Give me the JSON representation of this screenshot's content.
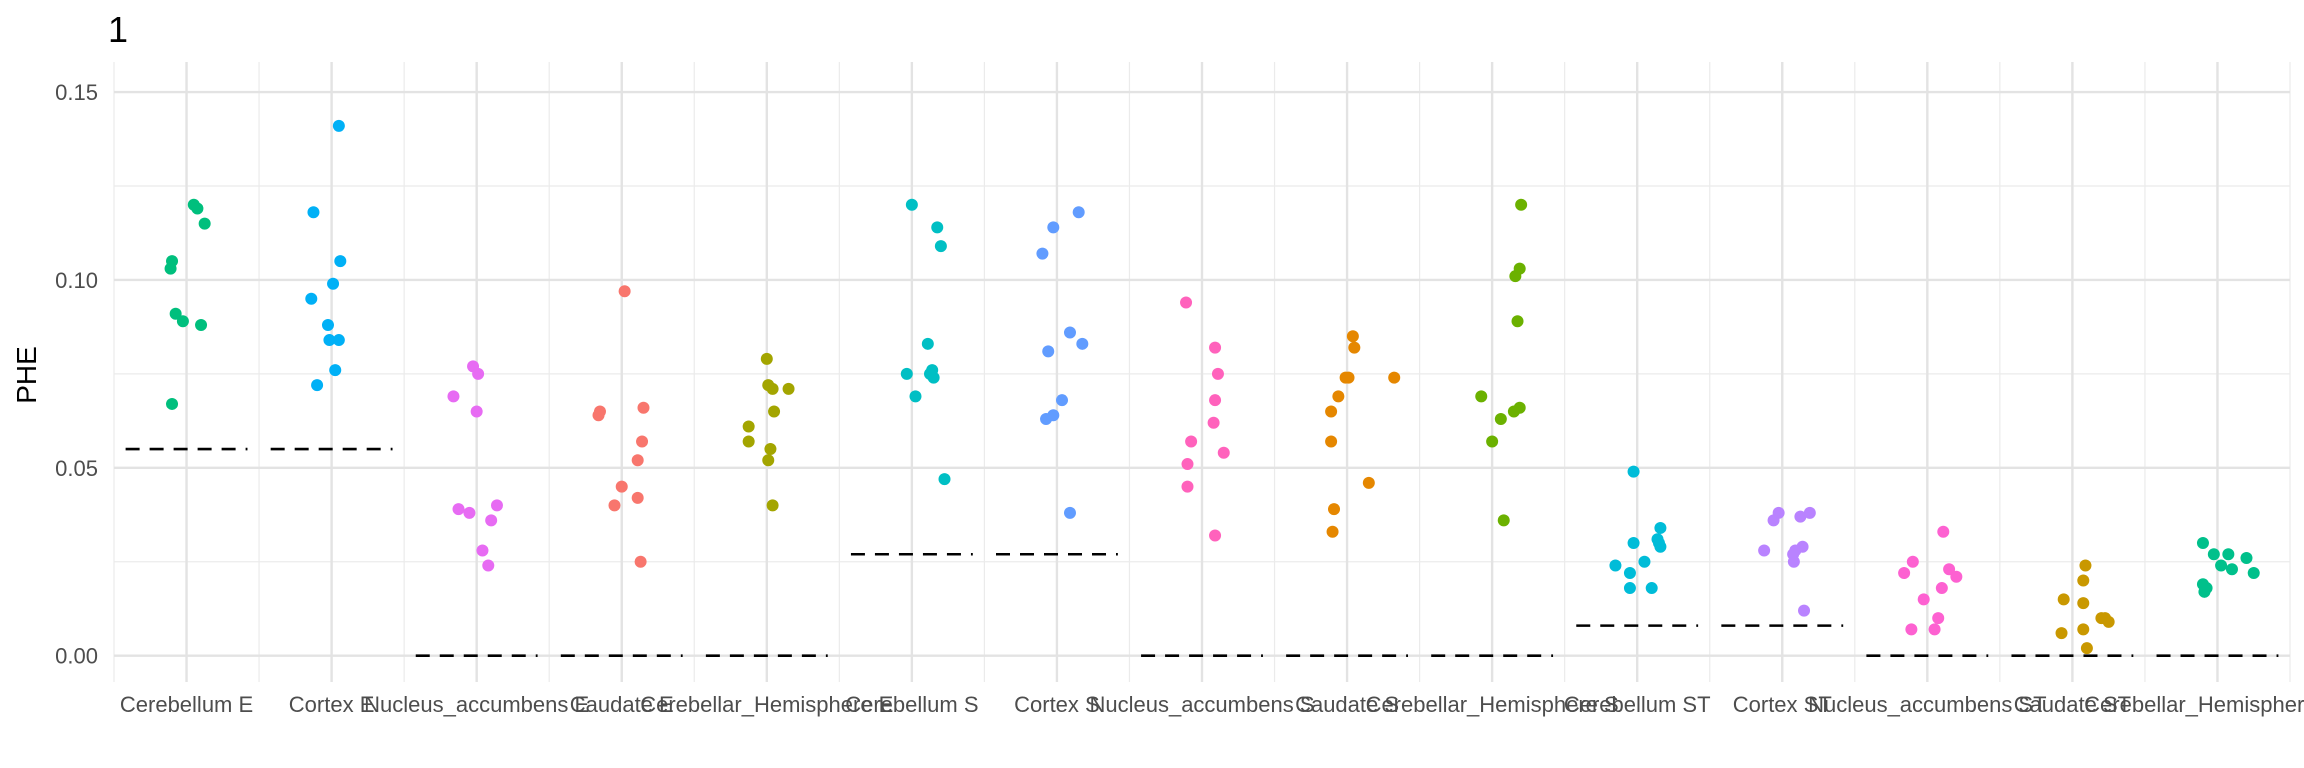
{
  "chart_data": {
    "type": "scatter",
    "title": "1",
    "xlabel": "",
    "ylabel": "PHE",
    "ylim": [
      -0.007,
      0.158
    ],
    "yticks": [
      "0.00",
      "0.05",
      "0.10",
      "0.15"
    ],
    "ytick_values": [
      0.0,
      0.05,
      0.1,
      0.15
    ],
    "grid": true,
    "legend": "none",
    "categories": [
      "Cerebellum E",
      "Cortex E",
      "Nucleus_accumbens E",
      "Caudate E",
      "Cerebellar_Hemisphere E",
      "Cerebellum S",
      "Cortex S",
      "Nucleus_accumbens S",
      "Caudate S",
      "Cerebellar_Hemisphere S",
      "Cerebellum ST",
      "Cortex ST",
      "Nucleus_accumbens ST",
      "Caudate ST",
      "Cerebellar_Hemisphere ST"
    ],
    "colors": [
      "#00BF7D",
      "#00B0F6",
      "#E76BF3",
      "#F8766D",
      "#A3A500",
      "#00BFC4",
      "#619CFF",
      "#FF62BC",
      "#E58700",
      "#6BB100",
      "#00BCD8",
      "#B983FF",
      "#FD61D1",
      "#C99800",
      "#00C08B"
    ],
    "threshold_color": "#000000",
    "series": [
      {
        "category": "Cerebellum E",
        "threshold": 0.055,
        "values": [
          0.12,
          0.119,
          0.115,
          0.105,
          0.103,
          0.091,
          0.089,
          0.088,
          0.067
        ],
        "offsets": [
          0.1,
          0.15,
          0.25,
          -0.2,
          -0.22,
          -0.15,
          -0.05,
          0.2,
          -0.2
        ]
      },
      {
        "category": "Cortex E",
        "threshold": 0.055,
        "values": [
          0.141,
          0.118,
          0.105,
          0.099,
          0.095,
          0.088,
          0.084,
          0.084,
          0.076,
          0.072
        ],
        "offsets": [
          0.1,
          -0.25,
          0.12,
          0.02,
          -0.28,
          -0.05,
          -0.03,
          0.1,
          0.05,
          -0.2
        ]
      },
      {
        "category": "Nucleus_accumbens E",
        "threshold": 0.0,
        "values": [
          0.077,
          0.075,
          0.069,
          0.065,
          0.04,
          0.039,
          0.038,
          0.036,
          0.028,
          0.024
        ],
        "offsets": [
          -0.05,
          0.02,
          -0.32,
          0.0,
          0.28,
          -0.25,
          -0.1,
          0.2,
          0.08,
          0.16
        ]
      },
      {
        "category": "Caudate E",
        "threshold": 0.0,
        "values": [
          0.097,
          0.066,
          0.065,
          0.064,
          0.057,
          0.052,
          0.045,
          0.042,
          0.04,
          0.025
        ],
        "offsets": [
          0.04,
          0.3,
          -0.3,
          -0.32,
          0.28,
          0.22,
          0.0,
          0.22,
          -0.1,
          0.26
        ]
      },
      {
        "category": "Cerebellar_Hemisphere E",
        "threshold": 0.0,
        "values": [
          0.079,
          0.072,
          0.071,
          0.071,
          0.065,
          0.061,
          0.057,
          0.055,
          0.052,
          0.04
        ],
        "offsets": [
          0.0,
          0.02,
          0.3,
          0.08,
          0.1,
          -0.25,
          -0.25,
          0.05,
          0.02,
          0.08
        ]
      },
      {
        "category": "Cerebellum S",
        "threshold": 0.027,
        "values": [
          0.12,
          0.114,
          0.109,
          0.083,
          0.076,
          0.075,
          0.074,
          0.075,
          0.069,
          0.047
        ],
        "offsets": [
          0.0,
          0.35,
          0.4,
          0.22,
          0.28,
          -0.07,
          0.3,
          0.25,
          0.05,
          0.45
        ]
      },
      {
        "category": "Cortex S",
        "threshold": 0.027,
        "values": [
          0.118,
          0.114,
          0.107,
          0.086,
          0.083,
          0.081,
          0.068,
          0.064,
          0.063,
          0.038
        ],
        "offsets": [
          0.3,
          -0.05,
          -0.2,
          0.18,
          0.35,
          -0.12,
          0.07,
          -0.05,
          -0.15,
          0.18
        ]
      },
      {
        "category": "Nucleus_accumbens S",
        "threshold": 0.0,
        "values": [
          0.094,
          0.082,
          0.075,
          0.068,
          0.062,
          0.057,
          0.054,
          0.051,
          0.045,
          0.032
        ],
        "offsets": [
          -0.22,
          0.18,
          0.22,
          0.18,
          0.16,
          -0.15,
          0.3,
          -0.2,
          -0.2,
          0.18
        ]
      },
      {
        "category": "Caudate S",
        "threshold": 0.0,
        "values": [
          0.085,
          0.082,
          0.074,
          0.074,
          0.074,
          0.069,
          0.065,
          0.057,
          0.046,
          0.039,
          0.033
        ],
        "offsets": [
          0.08,
          0.1,
          -0.02,
          0.02,
          0.65,
          -0.12,
          -0.22,
          -0.22,
          0.3,
          -0.18,
          -0.2
        ]
      },
      {
        "category": "Cerebellar_Hemisphere S",
        "threshold": 0.0,
        "values": [
          0.12,
          0.103,
          0.101,
          0.089,
          0.069,
          0.066,
          0.065,
          0.063,
          0.057,
          0.036
        ],
        "offsets": [
          0.4,
          0.38,
          0.32,
          0.35,
          -0.15,
          0.38,
          0.3,
          0.12,
          0.0,
          0.16
        ]
      },
      {
        "category": "Cerebellum ST",
        "threshold": 0.008,
        "values": [
          0.049,
          0.034,
          0.031,
          0.03,
          0.03,
          0.029,
          0.025,
          0.024,
          0.022,
          0.018,
          0.018
        ],
        "offsets": [
          -0.05,
          0.32,
          0.28,
          -0.05,
          0.3,
          0.32,
          0.1,
          -0.3,
          -0.1,
          0.2,
          -0.1
        ]
      },
      {
        "category": "Cortex ST",
        "threshold": 0.008,
        "values": [
          0.038,
          0.038,
          0.037,
          0.036,
          0.029,
          0.028,
          0.028,
          0.027,
          0.025,
          0.012
        ],
        "offsets": [
          -0.05,
          0.38,
          0.25,
          -0.12,
          0.28,
          -0.25,
          0.18,
          0.15,
          0.16,
          0.3
        ]
      },
      {
        "category": "Nucleus_accumbens ST",
        "threshold": 0.0,
        "values": [
          0.033,
          0.025,
          0.023,
          0.022,
          0.021,
          0.018,
          0.015,
          0.01,
          0.007,
          0.007
        ],
        "offsets": [
          0.22,
          -0.2,
          0.3,
          -0.32,
          0.4,
          0.2,
          -0.05,
          0.15,
          -0.22,
          0.1
        ]
      },
      {
        "category": "Caudate ST",
        "threshold": 0.0,
        "values": [
          0.024,
          0.02,
          0.015,
          0.014,
          0.01,
          0.01,
          0.009,
          0.007,
          0.006,
          0.002
        ],
        "offsets": [
          0.18,
          0.15,
          -0.12,
          0.15,
          0.4,
          0.45,
          0.5,
          0.15,
          -0.15,
          0.2
        ]
      },
      {
        "category": "Cerebellar_Hemisphere ST",
        "threshold": 0.0,
        "values": [
          0.03,
          0.027,
          0.027,
          0.026,
          0.024,
          0.023,
          0.022,
          0.019,
          0.018,
          0.017
        ],
        "offsets": [
          -0.2,
          0.15,
          -0.05,
          0.4,
          0.05,
          0.2,
          0.5,
          -0.2,
          -0.15,
          -0.18
        ]
      }
    ]
  }
}
